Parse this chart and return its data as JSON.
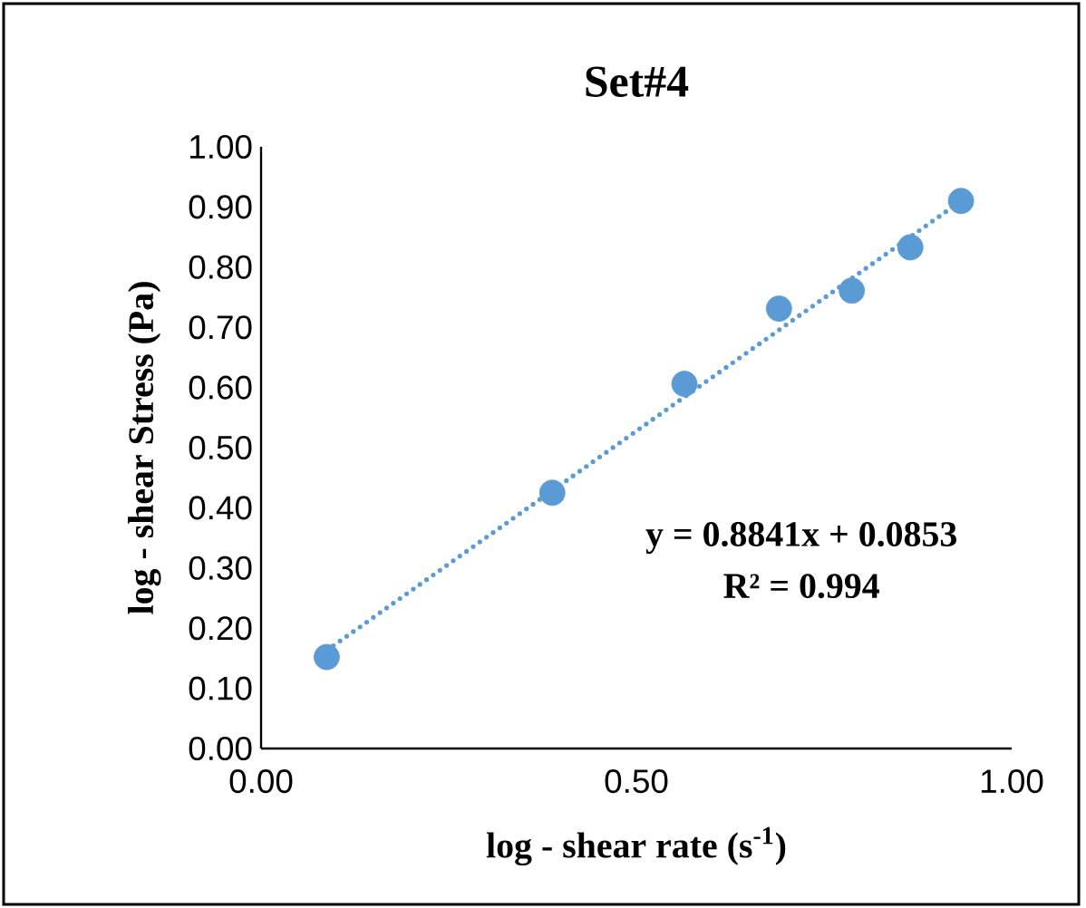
{
  "chart_data": {
    "type": "scatter",
    "title": "Set#4",
    "xlabel": "log - shear rate (s$^{-1}$)",
    "ylabel": "log - shear Stress (Pa)",
    "xlim": [
      0,
      1
    ],
    "ylim": [
      0,
      1
    ],
    "xticks": [
      {
        "value": 0,
        "label": "0.00"
      },
      {
        "value": 0.5,
        "label": "0.50"
      },
      {
        "value": 1,
        "label": "1.00"
      }
    ],
    "yticks": [
      {
        "value": 0,
        "label": "0.00"
      },
      {
        "value": 0.1,
        "label": "0.10"
      },
      {
        "value": 0.2,
        "label": "0.20"
      },
      {
        "value": 0.3,
        "label": "0.30"
      },
      {
        "value": 0.4,
        "label": "0.40"
      },
      {
        "value": 0.5,
        "label": "0.50"
      },
      {
        "value": 0.6,
        "label": "0.60"
      },
      {
        "value": 0.7,
        "label": "0.70"
      },
      {
        "value": 0.8,
        "label": "0.80"
      },
      {
        "value": 0.9,
        "label": "0.90"
      },
      {
        "value": 1,
        "label": "1.00"
      }
    ],
    "annotations": [
      "y = 0.8841x + 0.0853",
      "R² = 0.994"
    ],
    "series": [
      {
        "color": "#5b9bd5",
        "marker": "circle",
        "x": [
          0.0875,
          0.388,
          0.564,
          0.69,
          0.787,
          0.865,
          0.9325
        ],
        "values": [
          0.152,
          0.425,
          0.606,
          0.731,
          0.761,
          0.833,
          0.91
        ]
      },
      {
        "type": "line",
        "color": "#5b9bd5",
        "line_style": "dotted",
        "x": [
          0.0875,
          0.9325
        ],
        "values": [
          0.163,
          0.91
        ]
      }
    ]
  }
}
